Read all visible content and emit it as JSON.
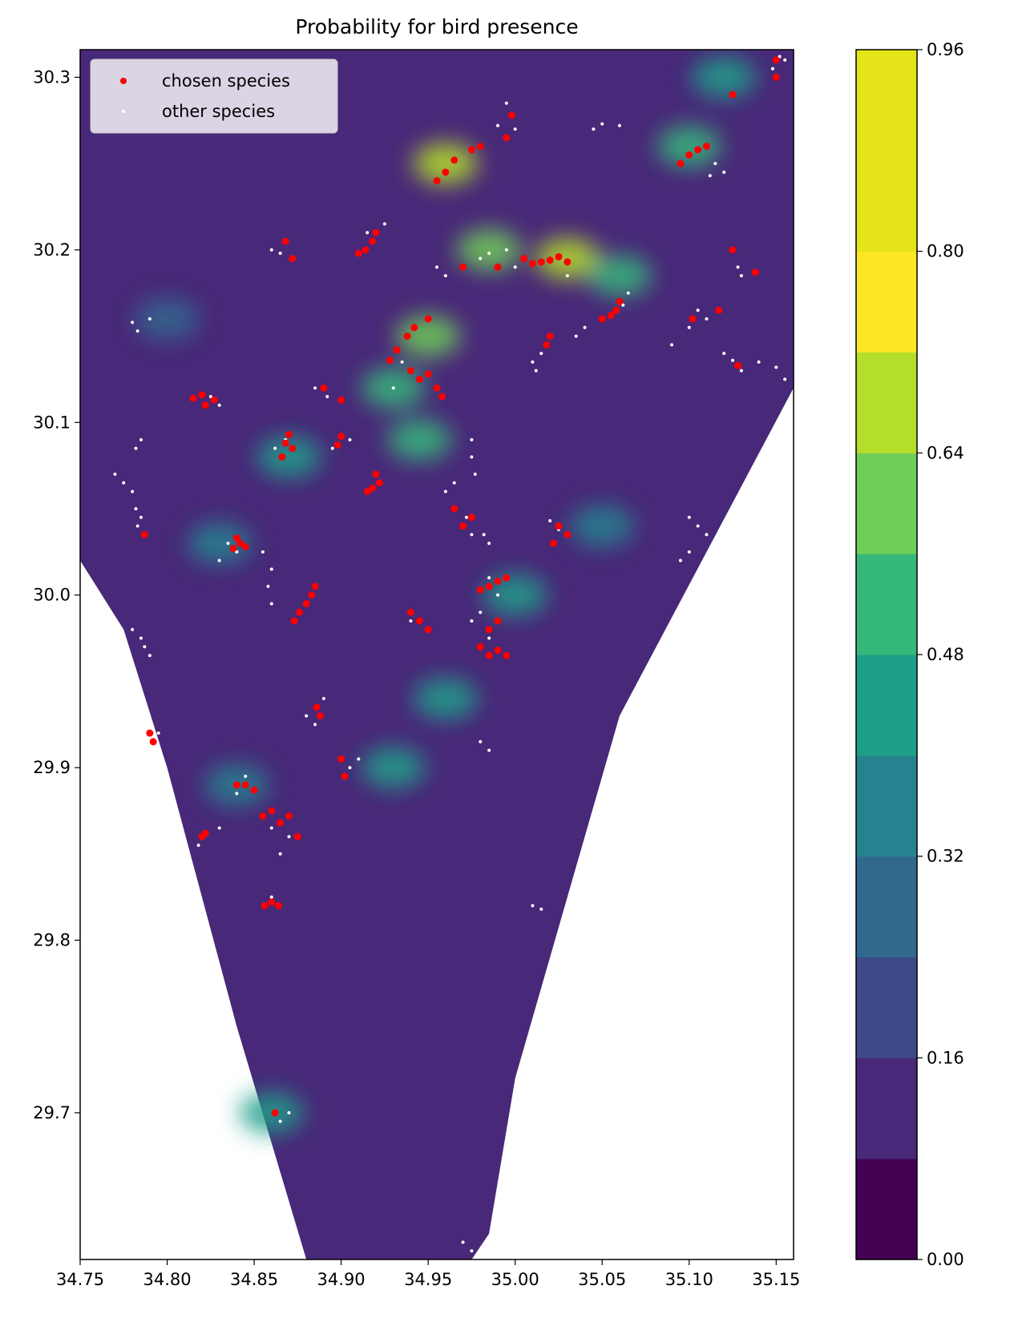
{
  "chart_data": {
    "type": "contour-scatter",
    "title": "Probability for bird presence",
    "xlabel": "",
    "ylabel": "",
    "xlim": [
      34.75,
      35.16
    ],
    "ylim": [
      29.615,
      30.316
    ],
    "x_ticks": [
      "34.75",
      "34.80",
      "34.85",
      "34.90",
      "34.95",
      "35.00",
      "35.05",
      "35.10",
      "35.15"
    ],
    "y_ticks": [
      "29.7",
      "29.8",
      "29.9",
      "30.0",
      "30.1",
      "30.2",
      "30.3"
    ],
    "region_outline": [
      [
        34.75,
        30.316
      ],
      [
        35.16,
        30.316
      ],
      [
        35.16,
        30.12
      ],
      [
        35.06,
        29.93
      ],
      [
        35.0,
        29.72
      ],
      [
        34.985,
        29.63
      ],
      [
        34.975,
        29.615
      ],
      [
        34.88,
        29.615
      ],
      [
        34.84,
        29.75
      ],
      [
        34.8,
        29.9
      ],
      [
        34.775,
        29.98
      ],
      [
        34.75,
        30.02
      ]
    ],
    "colorbar": {
      "ticks": [
        "0.00",
        "0.16",
        "0.32",
        "0.48",
        "0.64",
        "0.80",
        "0.96"
      ],
      "min": 0.0,
      "max": 0.96,
      "levels": [
        0.0,
        0.08,
        0.16,
        0.24,
        0.32,
        0.4,
        0.48,
        0.56,
        0.64,
        0.72,
        0.8,
        0.88,
        0.96
      ],
      "colors": [
        "#440154",
        "#482878",
        "#3e4989",
        "#31688e",
        "#26828e",
        "#1f9e89",
        "#35b779",
        "#6ece58",
        "#b5de2b",
        "#fde725",
        "#e5e419",
        "#e5e419"
      ]
    },
    "hotspots": [
      {
        "x": 34.96,
        "y": 30.25,
        "v": 0.7
      },
      {
        "x": 34.985,
        "y": 30.2,
        "v": 0.6
      },
      {
        "x": 35.03,
        "y": 30.195,
        "v": 0.65
      },
      {
        "x": 35.06,
        "y": 30.185,
        "v": 0.55
      },
      {
        "x": 34.95,
        "y": 30.15,
        "v": 0.6
      },
      {
        "x": 34.93,
        "y": 30.12,
        "v": 0.55
      },
      {
        "x": 34.945,
        "y": 30.09,
        "v": 0.55
      },
      {
        "x": 35.1,
        "y": 30.26,
        "v": 0.5
      },
      {
        "x": 35.12,
        "y": 30.3,
        "v": 0.45
      },
      {
        "x": 34.96,
        "y": 29.94,
        "v": 0.45
      },
      {
        "x": 34.93,
        "y": 29.9,
        "v": 0.45
      },
      {
        "x": 35.0,
        "y": 30.0,
        "v": 0.4
      },
      {
        "x": 34.87,
        "y": 30.08,
        "v": 0.4
      },
      {
        "x": 34.84,
        "y": 29.89,
        "v": 0.35
      },
      {
        "x": 34.86,
        "y": 29.7,
        "v": 0.45
      },
      {
        "x": 34.8,
        "y": 30.16,
        "v": 0.3
      },
      {
        "x": 35.05,
        "y": 30.04,
        "v": 0.35
      },
      {
        "x": 34.83,
        "y": 30.03,
        "v": 0.35
      }
    ],
    "series": [
      {
        "name": "chosen species",
        "color": "#ff0000",
        "points": [
          [
            35.15,
            30.31
          ],
          [
            35.15,
            30.3
          ],
          [
            35.125,
            30.29
          ],
          [
            34.998,
            30.278
          ],
          [
            34.995,
            30.265
          ],
          [
            34.98,
            30.26
          ],
          [
            34.975,
            30.258
          ],
          [
            34.965,
            30.252
          ],
          [
            34.96,
            30.245
          ],
          [
            34.955,
            30.24
          ],
          [
            35.095,
            30.25
          ],
          [
            35.1,
            30.255
          ],
          [
            35.105,
            30.258
          ],
          [
            35.11,
            30.26
          ],
          [
            34.92,
            30.21
          ],
          [
            34.918,
            30.205
          ],
          [
            34.914,
            30.2
          ],
          [
            34.91,
            30.198
          ],
          [
            34.868,
            30.205
          ],
          [
            34.872,
            30.195
          ],
          [
            34.97,
            30.19
          ],
          [
            34.99,
            30.19
          ],
          [
            35.005,
            30.195
          ],
          [
            35.01,
            30.192
          ],
          [
            35.015,
            30.193
          ],
          [
            35.02,
            30.194
          ],
          [
            35.025,
            30.196
          ],
          [
            35.03,
            30.193
          ],
          [
            35.125,
            30.2
          ],
          [
            35.138,
            30.187
          ],
          [
            35.06,
            30.17
          ],
          [
            35.058,
            30.165
          ],
          [
            35.055,
            30.162
          ],
          [
            35.05,
            30.16
          ],
          [
            35.02,
            30.15
          ],
          [
            35.018,
            30.145
          ],
          [
            35.102,
            30.16
          ],
          [
            35.117,
            30.165
          ],
          [
            35.128,
            30.133
          ],
          [
            34.95,
            30.16
          ],
          [
            34.942,
            30.155
          ],
          [
            34.938,
            30.15
          ],
          [
            34.932,
            30.142
          ],
          [
            34.928,
            30.136
          ],
          [
            34.94,
            30.13
          ],
          [
            34.945,
            30.125
          ],
          [
            34.95,
            30.128
          ],
          [
            34.955,
            30.12
          ],
          [
            34.958,
            30.115
          ],
          [
            34.89,
            30.12
          ],
          [
            34.9,
            30.113
          ],
          [
            34.815,
            30.114
          ],
          [
            34.82,
            30.116
          ],
          [
            34.827,
            30.113
          ],
          [
            34.822,
            30.11
          ],
          [
            34.87,
            30.093
          ],
          [
            34.868,
            30.088
          ],
          [
            34.872,
            30.085
          ],
          [
            34.866,
            30.08
          ],
          [
            34.9,
            30.092
          ],
          [
            34.898,
            30.087
          ],
          [
            34.92,
            30.07
          ],
          [
            34.922,
            30.065
          ],
          [
            34.918,
            30.062
          ],
          [
            34.915,
            30.06
          ],
          [
            34.965,
            30.05
          ],
          [
            34.97,
            30.04
          ],
          [
            34.975,
            30.045
          ],
          [
            35.025,
            30.04
          ],
          [
            35.03,
            30.035
          ],
          [
            35.022,
            30.03
          ],
          [
            34.787,
            30.035
          ],
          [
            34.84,
            30.033
          ],
          [
            34.842,
            30.03
          ],
          [
            34.838,
            30.027
          ],
          [
            34.845,
            30.028
          ],
          [
            34.885,
            30.005
          ],
          [
            34.883,
            30.0
          ],
          [
            34.88,
            29.995
          ],
          [
            34.876,
            29.99
          ],
          [
            34.873,
            29.985
          ],
          [
            34.985,
            30.005
          ],
          [
            34.99,
            30.008
          ],
          [
            34.995,
            30.01
          ],
          [
            34.98,
            30.003
          ],
          [
            34.94,
            29.99
          ],
          [
            34.945,
            29.985
          ],
          [
            34.95,
            29.98
          ],
          [
            34.985,
            29.98
          ],
          [
            34.99,
            29.985
          ],
          [
            34.98,
            29.97
          ],
          [
            34.985,
            29.965
          ],
          [
            34.99,
            29.968
          ],
          [
            34.995,
            29.965
          ],
          [
            34.886,
            29.935
          ],
          [
            34.888,
            29.93
          ],
          [
            34.79,
            29.92
          ],
          [
            34.792,
            29.915
          ],
          [
            34.9,
            29.905
          ],
          [
            34.902,
            29.895
          ],
          [
            34.84,
            29.89
          ],
          [
            34.845,
            29.89
          ],
          [
            34.85,
            29.887
          ],
          [
            34.855,
            29.872
          ],
          [
            34.86,
            29.875
          ],
          [
            34.865,
            29.868
          ],
          [
            34.87,
            29.872
          ],
          [
            34.875,
            29.86
          ],
          [
            34.82,
            29.86
          ],
          [
            34.822,
            29.862
          ],
          [
            34.856,
            29.82
          ],
          [
            34.86,
            29.822
          ],
          [
            34.864,
            29.82
          ],
          [
            34.862,
            29.7
          ]
        ]
      },
      {
        "name": "other species",
        "color": "#ffffff",
        "points": [
          [
            35.152,
            30.312
          ],
          [
            35.148,
            30.305
          ],
          [
            35.155,
            30.31
          ],
          [
            34.995,
            30.285
          ],
          [
            34.99,
            30.272
          ],
          [
            35.0,
            30.27
          ],
          [
            35.05,
            30.273
          ],
          [
            35.06,
            30.272
          ],
          [
            35.045,
            30.27
          ],
          [
            35.115,
            30.25
          ],
          [
            35.12,
            30.245
          ],
          [
            35.112,
            30.243
          ],
          [
            34.915,
            30.21
          ],
          [
            34.925,
            30.215
          ],
          [
            34.86,
            30.2
          ],
          [
            34.865,
            30.198
          ],
          [
            34.985,
            30.198
          ],
          [
            34.995,
            30.2
          ],
          [
            34.98,
            30.195
          ],
          [
            34.96,
            30.185
          ],
          [
            34.955,
            30.19
          ],
          [
            35.0,
            30.19
          ],
          [
            35.03,
            30.185
          ],
          [
            35.128,
            30.19
          ],
          [
            35.13,
            30.185
          ],
          [
            35.065,
            30.175
          ],
          [
            35.062,
            30.168
          ],
          [
            35.04,
            30.155
          ],
          [
            35.035,
            30.15
          ],
          [
            35.105,
            30.165
          ],
          [
            35.11,
            30.16
          ],
          [
            35.1,
            30.155
          ],
          [
            35.09,
            30.145
          ],
          [
            35.12,
            30.14
          ],
          [
            35.125,
            30.136
          ],
          [
            35.13,
            30.13
          ],
          [
            35.14,
            30.135
          ],
          [
            35.15,
            30.132
          ],
          [
            35.155,
            30.125
          ],
          [
            35.015,
            30.14
          ],
          [
            35.01,
            30.135
          ],
          [
            35.012,
            30.13
          ],
          [
            34.78,
            30.158
          ],
          [
            34.783,
            30.153
          ],
          [
            34.79,
            30.16
          ],
          [
            34.935,
            30.135
          ],
          [
            34.93,
            30.12
          ],
          [
            34.885,
            30.12
          ],
          [
            34.892,
            30.115
          ],
          [
            34.83,
            30.11
          ],
          [
            34.825,
            30.115
          ],
          [
            34.868,
            30.09
          ],
          [
            34.862,
            30.085
          ],
          [
            34.905,
            30.09
          ],
          [
            34.895,
            30.085
          ],
          [
            34.785,
            30.09
          ],
          [
            34.782,
            30.085
          ],
          [
            34.975,
            30.09
          ],
          [
            34.975,
            30.08
          ],
          [
            34.977,
            30.07
          ],
          [
            34.965,
            30.065
          ],
          [
            34.96,
            30.06
          ],
          [
            34.972,
            30.045
          ],
          [
            34.975,
            30.035
          ],
          [
            34.982,
            30.035
          ],
          [
            34.985,
            30.03
          ],
          [
            34.77,
            30.07
          ],
          [
            34.775,
            30.065
          ],
          [
            34.78,
            30.06
          ],
          [
            34.782,
            30.05
          ],
          [
            34.785,
            30.045
          ],
          [
            34.783,
            30.04
          ],
          [
            34.835,
            30.03
          ],
          [
            34.84,
            30.025
          ],
          [
            34.83,
            30.02
          ],
          [
            34.855,
            30.025
          ],
          [
            34.86,
            30.015
          ],
          [
            34.858,
            30.005
          ],
          [
            34.86,
            29.995
          ],
          [
            35.02,
            30.043
          ],
          [
            35.025,
            30.038
          ],
          [
            35.1,
            30.045
          ],
          [
            35.105,
            30.04
          ],
          [
            35.11,
            30.035
          ],
          [
            35.1,
            30.025
          ],
          [
            35.095,
            30.02
          ],
          [
            35.15,
            30.09
          ],
          [
            35.152,
            30.085
          ],
          [
            35.155,
            30.095
          ],
          [
            34.985,
            30.01
          ],
          [
            34.99,
            30.0
          ],
          [
            34.98,
            29.99
          ],
          [
            34.975,
            29.985
          ],
          [
            34.985,
            29.975
          ],
          [
            34.94,
            29.985
          ],
          [
            34.89,
            29.94
          ],
          [
            34.88,
            29.93
          ],
          [
            34.885,
            29.925
          ],
          [
            34.78,
            29.98
          ],
          [
            34.785,
            29.975
          ],
          [
            34.787,
            29.97
          ],
          [
            34.79,
            29.965
          ],
          [
            34.795,
            29.92
          ],
          [
            34.98,
            29.915
          ],
          [
            34.985,
            29.91
          ],
          [
            34.905,
            29.9
          ],
          [
            34.91,
            29.905
          ],
          [
            34.845,
            29.895
          ],
          [
            34.84,
            29.885
          ],
          [
            34.86,
            29.865
          ],
          [
            34.87,
            29.86
          ],
          [
            34.865,
            29.85
          ],
          [
            34.83,
            29.865
          ],
          [
            34.818,
            29.855
          ],
          [
            34.86,
            29.825
          ],
          [
            35.01,
            29.82
          ],
          [
            35.015,
            29.818
          ],
          [
            35.03,
            29.82
          ],
          [
            34.865,
            29.695
          ],
          [
            34.87,
            29.7
          ],
          [
            34.97,
            29.625
          ],
          [
            34.975,
            29.62
          ]
        ]
      }
    ],
    "legend": {
      "position": "upper-left",
      "entries": [
        "chosen species",
        "other species"
      ]
    }
  }
}
